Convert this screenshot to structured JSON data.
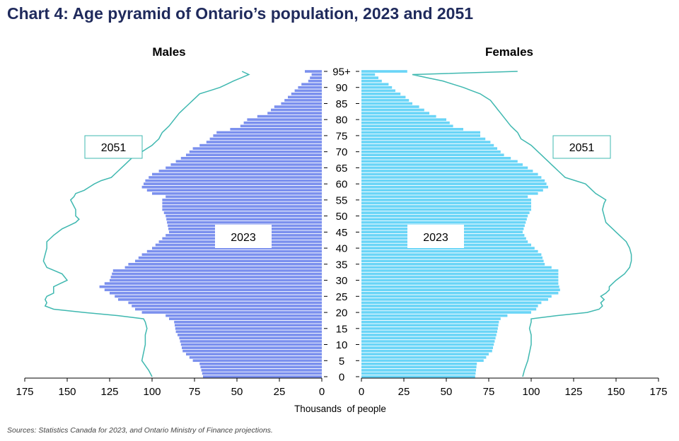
{
  "title": "Chart 4: Age pyramid of Ontario’s population, 2023 and 2051",
  "source": "Sources: Statistics Canada for 2023, and Ontario Ministry of Finance projections.",
  "chart_data": {
    "type": "bar",
    "orientation": "horizontal-pyramid",
    "left_title": "Males",
    "right_title": "Females",
    "xlabel": "Thousands  of people",
    "xlim": [
      0,
      175
    ],
    "x_ticks": [
      175,
      150,
      125,
      100,
      75,
      50,
      25,
      0
    ],
    "age_ticks": [
      "0",
      "5",
      "10",
      "15",
      "20",
      "25",
      "30",
      "35",
      "40",
      "45",
      "50",
      "55",
      "60",
      "65",
      "70",
      "75",
      "80",
      "85",
      "90",
      "95+"
    ],
    "colors": {
      "males_2023": "#7b90ee",
      "females_2023": "#6ad5f7",
      "line_2051": "#3fb8b0"
    },
    "annotations": {
      "male_2051": "2051",
      "female_2051": "2051",
      "male_2023": "2023",
      "female_2023": "2023"
    },
    "series": [
      {
        "name": "2023",
        "sex": "male",
        "type": "bar",
        "anchors": [
          [
            0,
            70
          ],
          [
            4,
            72
          ],
          [
            5,
            76
          ],
          [
            7,
            80
          ],
          [
            8,
            82
          ],
          [
            12,
            84
          ],
          [
            14,
            86
          ],
          [
            17,
            87
          ],
          [
            18,
            90
          ],
          [
            19,
            92
          ],
          [
            20,
            106
          ],
          [
            21,
            110
          ],
          [
            22,
            112
          ],
          [
            23,
            114
          ],
          [
            24,
            120
          ],
          [
            25,
            122
          ],
          [
            27,
            128
          ],
          [
            28,
            131
          ],
          [
            30,
            125
          ],
          [
            33,
            123
          ],
          [
            34,
            116
          ],
          [
            35,
            114
          ],
          [
            36,
            110
          ],
          [
            38,
            106
          ],
          [
            40,
            100
          ],
          [
            42,
            96
          ],
          [
            44,
            92
          ],
          [
            45,
            90
          ],
          [
            50,
            92
          ],
          [
            52,
            94
          ],
          [
            55,
            94
          ],
          [
            56,
            92
          ],
          [
            57,
            100
          ],
          [
            59,
            106
          ],
          [
            61,
            104
          ],
          [
            63,
            100
          ],
          [
            65,
            92
          ],
          [
            67,
            86
          ],
          [
            69,
            80
          ],
          [
            71,
            76
          ],
          [
            73,
            68
          ],
          [
            75,
            64
          ],
          [
            76,
            62
          ],
          [
            77,
            54
          ],
          [
            78,
            48
          ],
          [
            80,
            44
          ],
          [
            81,
            38
          ],
          [
            82,
            32
          ],
          [
            84,
            28
          ],
          [
            85,
            24
          ],
          [
            87,
            20
          ],
          [
            89,
            16
          ],
          [
            91,
            12
          ],
          [
            92,
            8
          ],
          [
            94,
            6
          ],
          [
            95,
            10
          ]
        ]
      },
      {
        "name": "2023",
        "sex": "female",
        "type": "bar",
        "anchors": [
          [
            0,
            67
          ],
          [
            4,
            68
          ],
          [
            5,
            72
          ],
          [
            7,
            75
          ],
          [
            8,
            77
          ],
          [
            12,
            79
          ],
          [
            14,
            80
          ],
          [
            17,
            81
          ],
          [
            18,
            82
          ],
          [
            19,
            86
          ],
          [
            20,
            100
          ],
          [
            21,
            103
          ],
          [
            22,
            104
          ],
          [
            23,
            106
          ],
          [
            24,
            110
          ],
          [
            25,
            112
          ],
          [
            26,
            116
          ],
          [
            27,
            117
          ],
          [
            29,
            116
          ],
          [
            33,
            116
          ],
          [
            34,
            112
          ],
          [
            35,
            108
          ],
          [
            38,
            106
          ],
          [
            40,
            102
          ],
          [
            42,
            98
          ],
          [
            44,
            96
          ],
          [
            45,
            95
          ],
          [
            50,
            98
          ],
          [
            52,
            100
          ],
          [
            55,
            100
          ],
          [
            56,
            98
          ],
          [
            57,
            104
          ],
          [
            59,
            110
          ],
          [
            61,
            108
          ],
          [
            63,
            104
          ],
          [
            65,
            98
          ],
          [
            67,
            92
          ],
          [
            69,
            84
          ],
          [
            71,
            80
          ],
          [
            73,
            76
          ],
          [
            75,
            70
          ],
          [
            76,
            70
          ],
          [
            77,
            60
          ],
          [
            78,
            54
          ],
          [
            80,
            50
          ],
          [
            81,
            44
          ],
          [
            82,
            40
          ],
          [
            84,
            34
          ],
          [
            85,
            30
          ],
          [
            87,
            26
          ],
          [
            89,
            20
          ],
          [
            91,
            16
          ],
          [
            92,
            12
          ],
          [
            94,
            8
          ],
          [
            95,
            27
          ]
        ]
      },
      {
        "name": "2051",
        "sex": "male",
        "type": "line",
        "anchors": [
          [
            0,
            100
          ],
          [
            2,
            102
          ],
          [
            5,
            106
          ],
          [
            10,
            104
          ],
          [
            13,
            104
          ],
          [
            15,
            103
          ],
          [
            17,
            104
          ],
          [
            18,
            105
          ],
          [
            19,
            120
          ],
          [
            20,
            140
          ],
          [
            21,
            158
          ],
          [
            22,
            163
          ],
          [
            23,
            162
          ],
          [
            24,
            163
          ],
          [
            25,
            162
          ],
          [
            26,
            158
          ],
          [
            28,
            158
          ],
          [
            30,
            150
          ],
          [
            32,
            153
          ],
          [
            34,
            162
          ],
          [
            36,
            164
          ],
          [
            38,
            163
          ],
          [
            40,
            162
          ],
          [
            42,
            162
          ],
          [
            44,
            158
          ],
          [
            46,
            153
          ],
          [
            48,
            145
          ],
          [
            49,
            143
          ],
          [
            50,
            145
          ],
          [
            52,
            145
          ],
          [
            54,
            147
          ],
          [
            55,
            148
          ],
          [
            56,
            146
          ],
          [
            57,
            145
          ],
          [
            58,
            140
          ],
          [
            59,
            137
          ],
          [
            60,
            134
          ],
          [
            61,
            130
          ],
          [
            62,
            124
          ],
          [
            64,
            120
          ],
          [
            66,
            116
          ],
          [
            68,
            112
          ],
          [
            70,
            106
          ],
          [
            72,
            100
          ],
          [
            74,
            96
          ],
          [
            76,
            94
          ],
          [
            78,
            90
          ],
          [
            80,
            87
          ],
          [
            82,
            84
          ],
          [
            84,
            80
          ],
          [
            86,
            76
          ],
          [
            88,
            72
          ],
          [
            90,
            60
          ],
          [
            92,
            52
          ],
          [
            94,
            43
          ],
          [
            95,
            47
          ]
        ]
      },
      {
        "name": "2051",
        "sex": "female",
        "type": "line",
        "anchors": [
          [
            0,
            95
          ],
          [
            2,
            96
          ],
          [
            5,
            98
          ],
          [
            10,
            100
          ],
          [
            13,
            100
          ],
          [
            15,
            99
          ],
          [
            17,
            100
          ],
          [
            18,
            100
          ],
          [
            19,
            115
          ],
          [
            20,
            133
          ],
          [
            21,
            140
          ],
          [
            22,
            142
          ],
          [
            23,
            141
          ],
          [
            24,
            143
          ],
          [
            25,
            141
          ],
          [
            26,
            144
          ],
          [
            27,
            146
          ],
          [
            28,
            146
          ],
          [
            30,
            150
          ],
          [
            32,
            155
          ],
          [
            34,
            158
          ],
          [
            36,
            159
          ],
          [
            38,
            159
          ],
          [
            40,
            158
          ],
          [
            42,
            156
          ],
          [
            44,
            152
          ],
          [
            46,
            148
          ],
          [
            48,
            144
          ],
          [
            50,
            143
          ],
          [
            52,
            142
          ],
          [
            54,
            143
          ],
          [
            55,
            144
          ],
          [
            56,
            141
          ],
          [
            57,
            138
          ],
          [
            58,
            136
          ],
          [
            59,
            134
          ],
          [
            60,
            132
          ],
          [
            61,
            126
          ],
          [
            62,
            120
          ],
          [
            64,
            116
          ],
          [
            66,
            112
          ],
          [
            68,
            108
          ],
          [
            70,
            104
          ],
          [
            72,
            100
          ],
          [
            74,
            94
          ],
          [
            76,
            92
          ],
          [
            78,
            88
          ],
          [
            80,
            85
          ],
          [
            82,
            82
          ],
          [
            84,
            79
          ],
          [
            86,
            76
          ],
          [
            88,
            70
          ],
          [
            90,
            60
          ],
          [
            92,
            48
          ],
          [
            94,
            30
          ],
          [
            95,
            92
          ]
        ]
      }
    ]
  }
}
